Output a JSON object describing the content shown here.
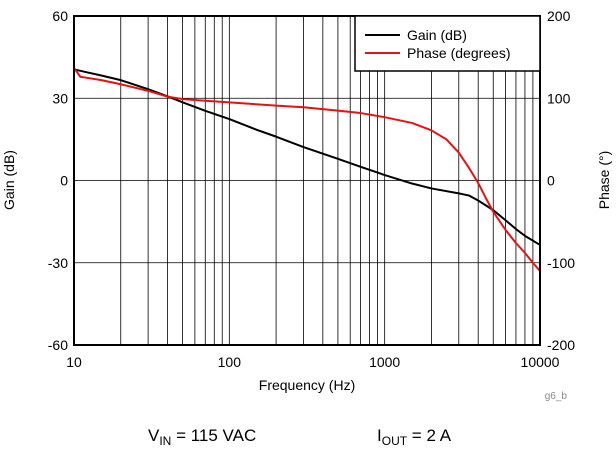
{
  "chart_data": {
    "type": "line",
    "xlabel": "Frequency (Hz)",
    "ylabel_left": "Gain (dB)",
    "ylabel_right": "Phase (°)",
    "x_scale": "log",
    "xlim": [
      10,
      10000
    ],
    "ylim_left": [
      -60,
      60
    ],
    "ylim_right": [
      -200,
      200
    ],
    "x_ticks": [
      10,
      100,
      1000,
      10000
    ],
    "x_tick_labels": [
      "10",
      "100",
      "1000",
      "10000"
    ],
    "y_left_ticks": [
      60,
      30,
      0,
      -30,
      -60
    ],
    "y_left_tick_labels": [
      "60",
      "30",
      "0",
      "-30",
      "-60"
    ],
    "y_right_ticks": [
      200,
      100,
      0,
      -100,
      -200
    ],
    "y_right_tick_labels": [
      "200",
      "100",
      "0",
      "-100",
      "-200"
    ],
    "grid": true,
    "legend_position": "top-right",
    "series": [
      {
        "name": "Gain (dB)",
        "color": "#000000",
        "axis": "left",
        "x": [
          10,
          11,
          12,
          15,
          20,
          30,
          40,
          50,
          70,
          100,
          150,
          200,
          300,
          500,
          700,
          1000,
          1500,
          2000,
          3000,
          3500,
          4000,
          5000,
          6000,
          7000,
          8000,
          10000
        ],
        "y": [
          40.5,
          40,
          39.5,
          38.3,
          36.6,
          33.3,
          30.7,
          28.5,
          25.4,
          22.4,
          18.5,
          16,
          12.2,
          7.9,
          5,
          2,
          -1.1,
          -2.9,
          -4.7,
          -5.5,
          -7.3,
          -10.8,
          -14.5,
          -17.7,
          -20.2,
          -23.5
        ]
      },
      {
        "name": "Phase (degrees)",
        "color": "#e8110f",
        "axis": "right",
        "x": [
          10,
          11,
          12,
          15,
          20,
          30,
          40,
          50,
          70,
          100,
          200,
          300,
          500,
          700,
          1000,
          1500,
          2000,
          2500,
          3000,
          3500,
          4000,
          4500,
          5000,
          6000,
          7000,
          8000,
          9000,
          10000
        ],
        "y": [
          137,
          126,
          125,
          122,
          117,
          109,
          102,
          99,
          97,
          95,
          91,
          89,
          85,
          82,
          77,
          70,
          61,
          50,
          34,
          15,
          -3,
          -22,
          -38,
          -60,
          -76,
          -88,
          -100,
          -110
        ]
      }
    ]
  },
  "ref_code": "g6_b",
  "conditions": {
    "vin_symbol": "V",
    "vin_sub": "IN",
    "vin_value": " = 115 VAC",
    "iout_symbol": "I",
    "iout_sub": "OUT",
    "iout_value": " = 2 A"
  }
}
